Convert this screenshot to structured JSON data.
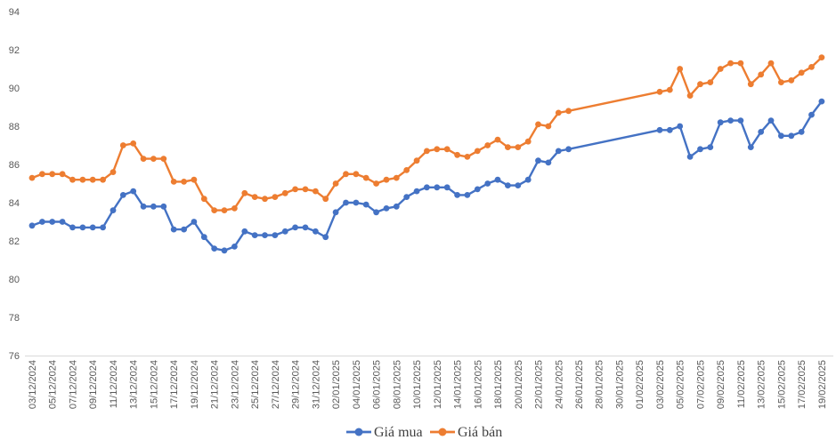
{
  "canvas": {
    "background": "#FFFFFF"
  },
  "chart_data": {
    "type": "line",
    "title": "",
    "xlabel": "",
    "ylabel": "",
    "ylim": [
      76,
      94
    ],
    "y_step": 2,
    "grid": false,
    "legend_position": "bottom",
    "x_label_every": 2,
    "axis_colors": {
      "tick_text": "#595959",
      "axis_line": "#D9D9D9"
    },
    "x": [
      "03/12/2024",
      "04/12/2024",
      "05/12/2024",
      "06/12/2024",
      "07/12/2024",
      "08/12/2024",
      "09/12/2024",
      "10/12/2024",
      "11/12/2024",
      "12/12/2024",
      "13/12/2024",
      "14/12/2024",
      "15/12/2024",
      "16/12/2024",
      "17/12/2024",
      "18/12/2024",
      "19/12/2024",
      "20/12/2024",
      "21/12/2024",
      "22/12/2024",
      "23/12/2024",
      "24/12/2024",
      "25/12/2024",
      "26/12/2024",
      "27/12/2024",
      "28/12/2024",
      "29/12/2024",
      "30/12/2024",
      "31/12/2024",
      "01/01/2025",
      "02/01/2025",
      "03/01/2025",
      "04/01/2025",
      "05/01/2025",
      "06/01/2025",
      "07/01/2025",
      "08/01/2025",
      "09/01/2025",
      "10/01/2025",
      "11/01/2025",
      "12/01/2025",
      "13/01/2025",
      "14/01/2025",
      "15/01/2025",
      "16/01/2025",
      "17/01/2025",
      "18/01/2025",
      "19/01/2025",
      "20/01/2025",
      "21/01/2025",
      "22/01/2025",
      "23/01/2025",
      "24/01/2025",
      "25/01/2025",
      "26/01/2025",
      "27/01/2025",
      "28/01/2025",
      "29/01/2025",
      "30/01/2025",
      "31/01/2025",
      "01/02/2025",
      "02/02/2025",
      "03/02/2025",
      "04/02/2025",
      "05/02/2025",
      "06/02/2025",
      "07/02/2025",
      "08/02/2025",
      "09/02/2025",
      "10/02/2025",
      "11/02/2025",
      "12/02/2025",
      "13/02/2025",
      "14/02/2025",
      "15/02/2025",
      "16/02/2025",
      "17/02/2025",
      "18/02/2025",
      "19/02/2025"
    ],
    "series": [
      {
        "id": "gia-mua",
        "name": "Giá mua",
        "color": "#4472C4",
        "values": [
          82.8,
          83.0,
          83.0,
          83.0,
          82.7,
          82.7,
          82.7,
          82.7,
          83.6,
          84.4,
          84.6,
          83.8,
          83.8,
          83.8,
          82.6,
          82.6,
          83.0,
          82.2,
          81.6,
          81.5,
          81.7,
          82.5,
          82.3,
          82.3,
          82.3,
          82.5,
          82.7,
          82.7,
          82.5,
          82.2,
          83.5,
          84.0,
          84.0,
          83.9,
          83.5,
          83.7,
          83.8,
          84.3,
          84.6,
          84.8,
          84.8,
          84.8,
          84.4,
          84.4,
          84.7,
          85.0,
          85.2,
          84.9,
          84.9,
          85.2,
          86.2,
          86.1,
          86.7,
          86.8,
          null,
          null,
          null,
          null,
          null,
          null,
          null,
          null,
          87.8,
          87.8,
          88.0,
          86.4,
          86.8,
          86.9,
          88.2,
          88.3,
          88.3,
          86.9,
          87.7,
          88.3,
          87.5,
          87.5,
          87.7,
          88.6,
          89.3
        ]
      },
      {
        "id": "gia-ban",
        "name": "Giá bán",
        "color": "#ED7D31",
        "values": [
          85.3,
          85.5,
          85.5,
          85.5,
          85.2,
          85.2,
          85.2,
          85.2,
          85.6,
          87.0,
          87.1,
          86.3,
          86.3,
          86.3,
          85.1,
          85.1,
          85.2,
          84.2,
          83.6,
          83.6,
          83.7,
          84.5,
          84.3,
          84.2,
          84.3,
          84.5,
          84.7,
          84.7,
          84.6,
          84.2,
          85.0,
          85.5,
          85.5,
          85.3,
          85.0,
          85.2,
          85.3,
          85.7,
          86.2,
          86.7,
          86.8,
          86.8,
          86.5,
          86.4,
          86.7,
          87.0,
          87.3,
          86.9,
          86.9,
          87.2,
          88.1,
          88.0,
          88.7,
          88.8,
          null,
          null,
          null,
          null,
          null,
          null,
          null,
          null,
          89.8,
          89.9,
          91.0,
          89.6,
          90.2,
          90.3,
          91.0,
          91.3,
          91.3,
          90.2,
          90.7,
          91.3,
          90.3,
          90.4,
          90.8,
          91.1,
          91.6
        ]
      }
    ]
  }
}
